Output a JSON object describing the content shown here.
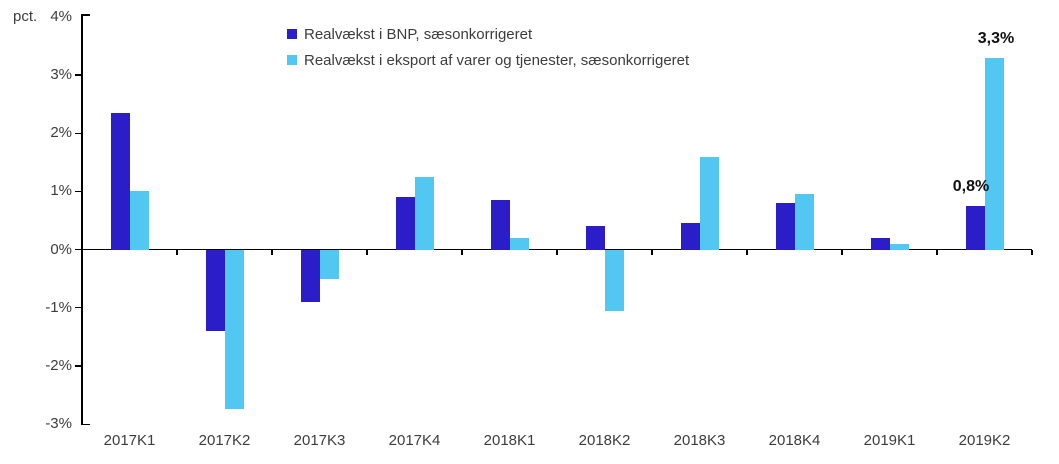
{
  "chart_data": {
    "type": "bar",
    "title": "",
    "axis_unit_label": "pct.",
    "categories": [
      "2017K1",
      "2017K2",
      "2017K3",
      "2017K4",
      "2018K1",
      "2018K2",
      "2018K3",
      "2018K4",
      "2019K1",
      "2019K2"
    ],
    "series": [
      {
        "name": "Realvækst i BNP, sæsonkorrigeret",
        "color": "#2b1ec9",
        "values": [
          2.35,
          -1.4,
          -0.9,
          0.9,
          0.85,
          0.4,
          0.45,
          0.8,
          0.2,
          0.75
        ]
      },
      {
        "name": "Realvækst i eksport af varer og tjenester, sæsonkorrigeret",
        "color": "#52c7f2",
        "values": [
          1.0,
          -2.75,
          -0.5,
          1.25,
          0.2,
          -1.05,
          1.6,
          0.95,
          0.1,
          3.3
        ]
      }
    ],
    "ylim": [
      -3,
      4
    ],
    "ytick_step": 1,
    "ytick_suffix": "%",
    "grid": false,
    "legend_position": "top-center",
    "annotations": [
      {
        "category": "2019K2",
        "series": 0,
        "text": "0,8%"
      },
      {
        "category": "2019K2",
        "series": 1,
        "text": "3,3%"
      }
    ]
  },
  "colors": {
    "background": "#ffffff",
    "axis": "#000000",
    "text": "#3d3d3d",
    "annotation": "#111111"
  }
}
